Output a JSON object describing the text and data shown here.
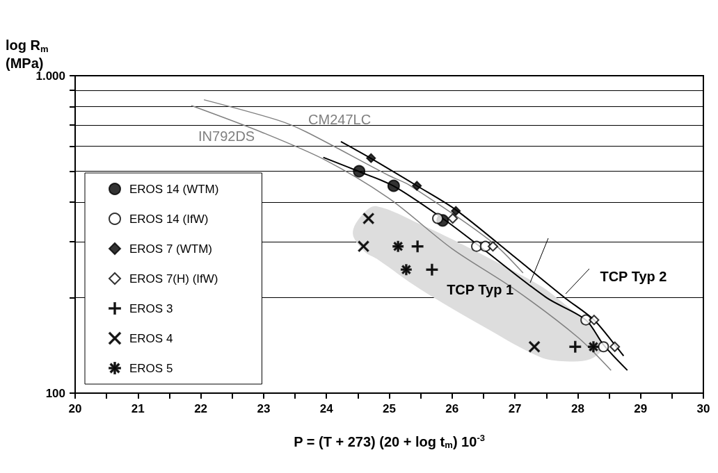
{
  "chart_data": {
    "type": "scatter",
    "xlabel": "P = (T + 273) (20 + log t$_{m}$) 10$^{-3}$",
    "ylabel": "log R$_{m}$\n(MPa)",
    "xlim": [
      20,
      30
    ],
    "xticks": [
      20,
      {
        "value": 20.5,
        "label": null
      },
      21,
      {
        "value": 21.5,
        "label": null
      },
      22,
      {
        "value": 22.5,
        "label": null
      },
      23,
      {
        "value": 23.5,
        "label": null
      },
      24,
      {
        "value": 24.5,
        "label": null
      },
      25,
      {
        "value": 25.5,
        "label": null
      },
      26,
      {
        "value": 26.5,
        "label": null
      },
      27,
      {
        "value": 27.5,
        "label": null
      },
      28,
      {
        "value": 28.5,
        "label": null
      },
      29,
      {
        "value": 29.5,
        "label": null
      },
      30
    ],
    "ylim": [
      100,
      1000
    ],
    "yticks": [
      100,
      {
        "value": 200,
        "label": null
      },
      {
        "value": 300,
        "label": null
      },
      {
        "value": 400,
        "label": null
      },
      {
        "value": 500,
        "label": null
      },
      {
        "value": 600,
        "label": null
      },
      {
        "value": 700,
        "label": null
      },
      {
        "value": 800,
        "label": null
      },
      {
        "value": 900,
        "label": null
      },
      {
        "value": 1000,
        "label": "1.000"
      }
    ],
    "log": "y",
    "grid": "y",
    "legend": "bottom left",
    "annotations": [
      "TCP Typ 1",
      "TCP Typ 2"
    ],
    "series": [
      {
        "type": "area",
        "color": "#dddddd",
        "x": [
          24.42,
          24.6,
          24.8,
          25.5,
          26.5,
          27.4,
          27.8,
          28.2,
          28.4,
          28.2,
          27.8,
          27.4,
          26.5,
          25.5,
          24.8,
          24.6
        ],
        "values": [
          320,
          370,
          388,
          340,
          272,
          218,
          190,
          163,
          140,
          128,
          126,
          130,
          162,
          212,
          265,
          280
        ]
      },
      {
        "type": "line",
        "name": "CM247LC",
        "color": "#808080",
        "marker": "none",
        "x": [
          22.05,
          23.23,
          23.68,
          25.0,
          25.33,
          26.62,
          27.13
        ],
        "values": [
          840,
          724,
          665,
          484,
          451,
          301,
          239
        ]
      },
      {
        "type": "line",
        "name": "IN792DS",
        "color": "#808080",
        "marker": "none",
        "x": [
          21.85,
          23.0,
          24.0,
          25.0,
          26.0,
          27.0,
          28.0,
          28.53
        ],
        "values": [
          805,
          660,
          540,
          410,
          285,
          212,
          150,
          118
        ]
      },
      {
        "type": "line",
        "color": "#000000",
        "marker": "none",
        "x": [
          24.23,
          24.71,
          25.44,
          26.06,
          27.0,
          27.79,
          28.26,
          28.59,
          28.73
        ],
        "values": [
          620,
          549,
          450,
          378,
          268,
          200,
          170,
          142,
          131
        ]
      },
      {
        "type": "line",
        "color": "#000000",
        "marker": "none",
        "x": [
          23.95,
          24.52,
          25.07,
          25.85,
          26.39,
          27.5,
          28.13,
          28.41,
          28.79
        ],
        "values": [
          553,
          499,
          449,
          355,
          295,
          200,
          170,
          142,
          118
        ]
      },
      {
        "name": "EROS 14 (WTM)",
        "color": "#000000",
        "marker": "circle",
        "x": [
          24.52,
          25.07,
          25.85
        ],
        "values": [
          500,
          450,
          350
        ]
      },
      {
        "name": "EROS 14 (IfW)",
        "color": "#000000",
        "marker": "circle-open",
        "x": [
          25.77,
          26.39,
          26.53,
          28.13,
          28.41
        ],
        "values": [
          355,
          290,
          290,
          170,
          140
        ]
      },
      {
        "name": "EROS 7 (WTM)",
        "color": "#000000",
        "marker": "diamond",
        "x": [
          24.71,
          25.44,
          26.06
        ],
        "values": [
          550,
          450,
          375
        ]
      },
      {
        "name": "EROS 7(H) (IfW)",
        "color": "#000000",
        "marker": "diamond-open",
        "x": [
          26.01,
          26.65,
          28.26,
          28.59
        ],
        "values": [
          355,
          290,
          170,
          140
        ]
      },
      {
        "name": "EROS 3",
        "color": "#000000",
        "marker": "plus",
        "x": [
          25.45,
          25.68,
          27.96
        ],
        "values": [
          290,
          245,
          140
        ]
      },
      {
        "name": "EROS 4",
        "color": "#000000",
        "marker": "cross",
        "x": [
          24.67,
          24.59,
          27.31
        ],
        "values": [
          355,
          290,
          140
        ]
      },
      {
        "name": "EROS 5",
        "color": "#000000",
        "marker": "star",
        "x": [
          25.14,
          25.27,
          28.25
        ],
        "values": [
          290,
          245,
          140
        ]
      }
    ]
  }
}
